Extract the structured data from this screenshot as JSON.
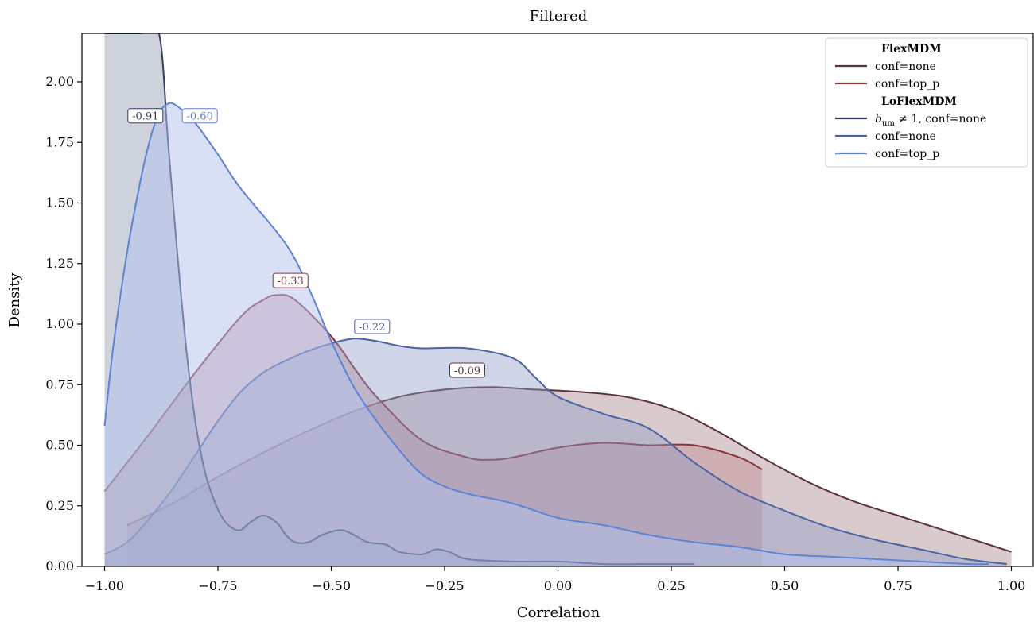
{
  "chart_data": {
    "type": "area",
    "title": "Filtered",
    "xlabel": "Correlation",
    "ylabel": "Density",
    "xlim": [
      -1.05,
      1.05
    ],
    "ylim": [
      0,
      2.2
    ],
    "xticks": [
      -1.0,
      -0.75,
      -0.5,
      -0.25,
      0.0,
      0.25,
      0.5,
      0.75,
      1.0
    ],
    "xtick_labels": [
      "−1.00",
      "−0.75",
      "−0.50",
      "−0.25",
      "0.00",
      "0.25",
      "0.50",
      "0.75",
      "1.00"
    ],
    "yticks": [
      0.0,
      0.25,
      0.5,
      0.75,
      1.0,
      1.25,
      1.5,
      1.75,
      2.0
    ],
    "ytick_labels": [
      "0.00",
      "0.25",
      "0.50",
      "0.75",
      "1.00",
      "1.25",
      "1.50",
      "1.75",
      "2.00"
    ],
    "grid": false,
    "legend_position": "top-right",
    "legend_groups": [
      {
        "header": "FlexMDM",
        "entries": [
          {
            "label": "conf=none",
            "color": "#5a3338"
          },
          {
            "label": "conf=top_p",
            "color": "#8b323c"
          }
        ]
      },
      {
        "header": "LoFlexMDM",
        "entries": [
          {
            "label_prefix": "b",
            "label_sub": "um",
            "label_suffix": " ≠ 1, conf=none",
            "color": "#34405f"
          },
          {
            "label": "conf=none",
            "color": "#4b62a3"
          },
          {
            "label": "conf=top_p",
            "color": "#5e82d6"
          }
        ]
      }
    ],
    "series": [
      {
        "color": "#5a3338",
        "fill": "#bfa8ab",
        "fill_opacity": 0.6,
        "annotation": "-0.09",
        "annotation_pos": [
          -0.2,
          0.81
        ],
        "x": [
          -0.95,
          -0.85,
          -0.75,
          -0.65,
          -0.55,
          -0.45,
          -0.35,
          -0.25,
          -0.15,
          -0.05,
          0.05,
          0.15,
          0.25,
          0.35,
          0.45,
          0.55,
          0.65,
          0.75,
          0.85,
          0.95,
          1.0
        ],
        "y": [
          0.17,
          0.26,
          0.37,
          0.47,
          0.56,
          0.64,
          0.7,
          0.73,
          0.74,
          0.73,
          0.72,
          0.7,
          0.65,
          0.56,
          0.45,
          0.35,
          0.27,
          0.21,
          0.15,
          0.09,
          0.06
        ]
      },
      {
        "color": "#8b323c",
        "fill": "#c4949a",
        "fill_opacity": 0.5,
        "annotation": "-0.33",
        "annotation_pos": [
          -0.59,
          1.18
        ],
        "x": [
          -1.0,
          -0.9,
          -0.8,
          -0.7,
          -0.65,
          -0.62,
          -0.58,
          -0.5,
          -0.45,
          -0.4,
          -0.3,
          -0.2,
          -0.15,
          -0.1,
          0.0,
          0.1,
          0.2,
          0.3,
          0.4,
          0.45
        ],
        "y": [
          0.31,
          0.55,
          0.8,
          1.03,
          1.1,
          1.12,
          1.1,
          0.95,
          0.82,
          0.7,
          0.52,
          0.45,
          0.44,
          0.45,
          0.49,
          0.51,
          0.5,
          0.5,
          0.45,
          0.4
        ]
      },
      {
        "color": "#34405f",
        "fill": "#8a93a8",
        "fill_opacity": 0.42,
        "annotation": "-0.91",
        "annotation_pos": [
          -0.91,
          1.86
        ],
        "x": [
          -1.0,
          -0.92,
          -0.88,
          -0.86,
          -0.84,
          -0.82,
          -0.8,
          -0.78,
          -0.76,
          -0.74,
          -0.72,
          -0.7,
          -0.68,
          -0.65,
          -0.62,
          -0.6,
          -0.58,
          -0.55,
          -0.52,
          -0.48,
          -0.45,
          -0.42,
          -0.38,
          -0.35,
          -0.3,
          -0.27,
          -0.24,
          -0.2,
          -0.1,
          0.0,
          0.1,
          0.2,
          0.3
        ],
        "y": [
          2.2,
          2.2,
          2.2,
          1.75,
          1.3,
          0.9,
          0.6,
          0.4,
          0.28,
          0.2,
          0.16,
          0.15,
          0.18,
          0.21,
          0.18,
          0.13,
          0.1,
          0.1,
          0.13,
          0.15,
          0.13,
          0.1,
          0.09,
          0.06,
          0.05,
          0.07,
          0.06,
          0.03,
          0.02,
          0.02,
          0.01,
          0.01,
          0.01
        ]
      },
      {
        "color": "#4b62a3",
        "fill": "#8f9cc6",
        "fill_opacity": 0.42,
        "annotation": "-0.22",
        "annotation_pos": [
          -0.41,
          0.99
        ],
        "x": [
          -1.0,
          -0.95,
          -0.9,
          -0.85,
          -0.8,
          -0.75,
          -0.7,
          -0.65,
          -0.6,
          -0.55,
          -0.5,
          -0.45,
          -0.4,
          -0.35,
          -0.3,
          -0.2,
          -0.1,
          -0.05,
          0.0,
          0.1,
          0.2,
          0.3,
          0.4,
          0.5,
          0.6,
          0.7,
          0.8,
          0.9,
          0.99
        ],
        "y": [
          0.05,
          0.1,
          0.2,
          0.32,
          0.46,
          0.6,
          0.72,
          0.8,
          0.85,
          0.89,
          0.92,
          0.94,
          0.93,
          0.91,
          0.9,
          0.9,
          0.86,
          0.78,
          0.7,
          0.63,
          0.57,
          0.43,
          0.31,
          0.23,
          0.16,
          0.11,
          0.07,
          0.03,
          0.01
        ]
      },
      {
        "color": "#5e82d6",
        "fill": "#b4c2ee",
        "fill_opacity": 0.5,
        "annotation": "-0.60",
        "annotation_pos": [
          -0.79,
          1.86
        ],
        "x": [
          -1.0,
          -0.98,
          -0.95,
          -0.92,
          -0.9,
          -0.88,
          -0.86,
          -0.84,
          -0.8,
          -0.75,
          -0.7,
          -0.6,
          -0.55,
          -0.5,
          -0.45,
          -0.4,
          -0.35,
          -0.3,
          -0.25,
          -0.2,
          -0.1,
          0.0,
          0.1,
          0.2,
          0.3,
          0.4,
          0.5,
          0.6,
          0.7,
          0.8,
          0.9,
          0.95
        ],
        "y": [
          0.58,
          0.92,
          1.3,
          1.6,
          1.76,
          1.87,
          1.91,
          1.9,
          1.83,
          1.7,
          1.56,
          1.33,
          1.15,
          0.93,
          0.74,
          0.6,
          0.48,
          0.38,
          0.33,
          0.3,
          0.26,
          0.2,
          0.17,
          0.13,
          0.1,
          0.08,
          0.05,
          0.04,
          0.03,
          0.02,
          0.01,
          0.01
        ]
      }
    ]
  }
}
